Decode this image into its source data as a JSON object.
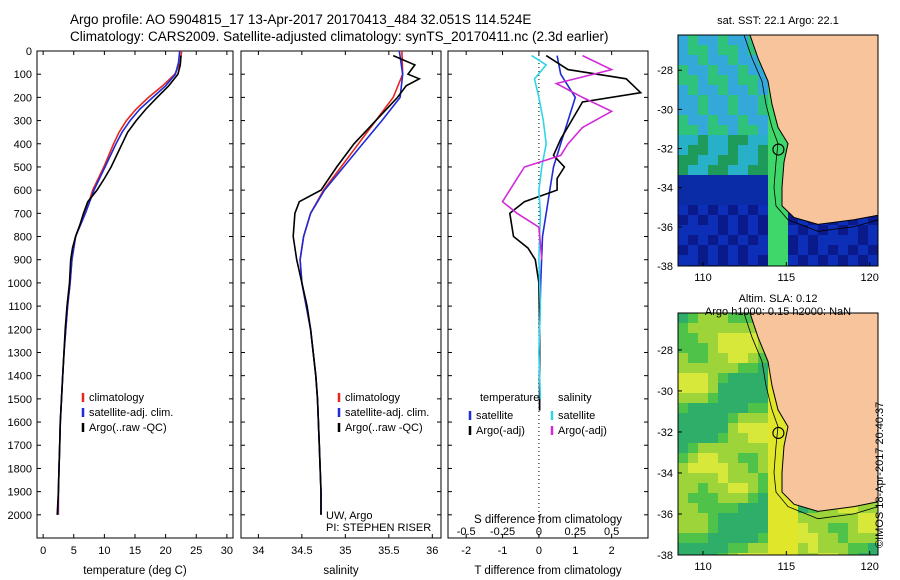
{
  "header": {
    "line1": "Argo profile: AO 5904815_17 13-Apr-2017 20170413_484 32.051S 114.524E",
    "line2": "Climatology: CARS2009. Satellite-adjusted climatology: synTS_20170411.nc (2.3d earlier)"
  },
  "stamp": "©IMOS 18-Apr-2017 20:40:37",
  "colors": {
    "climatology": "#e8261e",
    "satellite": "#1f2bd6",
    "argo": "#000000",
    "satellite_s": "#2fd6e8",
    "argo_s": "#d12bd8",
    "land": "#f7c49b"
  },
  "chart_data": [
    {
      "type": "line",
      "panel": "temperature",
      "xlabel": "temperature (deg C)",
      "xlim": [
        -1,
        31
      ],
      "xticks": [
        0,
        5,
        10,
        15,
        20,
        25,
        30
      ],
      "ylim": [
        2100,
        0
      ],
      "yticks": [
        0,
        100,
        200,
        300,
        400,
        500,
        600,
        700,
        800,
        900,
        1000,
        1100,
        1200,
        1300,
        1400,
        1500,
        1600,
        1700,
        1800,
        1900,
        2000
      ],
      "legend": [
        "climatology",
        "satellite-adj. clim.",
        "Argo(..raw -QC)"
      ],
      "legend_position": "lower-left",
      "series": [
        {
          "name": "climatology",
          "color": "#e8261e",
          "points": [
            [
              22.6,
              0
            ],
            [
              22.4,
              50
            ],
            [
              21.5,
              100
            ],
            [
              19.5,
              150
            ],
            [
              17.2,
              200
            ],
            [
              15.2,
              250
            ],
            [
              13.6,
              300
            ],
            [
              12.4,
              350
            ],
            [
              11.5,
              400
            ],
            [
              10.7,
              450
            ],
            [
              9.9,
              500
            ],
            [
              9.0,
              550
            ],
            [
              8.1,
              600
            ],
            [
              7.5,
              650
            ],
            [
              6.8,
              700
            ],
            [
              6.0,
              750
            ],
            [
              5.3,
              800
            ],
            [
              4.7,
              900
            ],
            [
              4.4,
              1000
            ],
            [
              4.0,
              1100
            ],
            [
              3.7,
              1200
            ],
            [
              3.4,
              1300
            ],
            [
              3.2,
              1400
            ],
            [
              3.0,
              1500
            ],
            [
              2.8,
              1600
            ],
            [
              2.7,
              1700
            ],
            [
              2.6,
              1800
            ],
            [
              2.5,
              1900
            ],
            [
              2.5,
              2000
            ]
          ]
        },
        {
          "name": "satellite-adj. clim.",
          "color": "#1f2bd6",
          "points": [
            [
              22.3,
              0
            ],
            [
              22.1,
              50
            ],
            [
              21.6,
              100
            ],
            [
              20.0,
              150
            ],
            [
              17.9,
              200
            ],
            [
              15.8,
              250
            ],
            [
              14.2,
              300
            ],
            [
              12.9,
              350
            ],
            [
              11.9,
              400
            ],
            [
              11.0,
              450
            ],
            [
              10.1,
              500
            ],
            [
              9.2,
              550
            ],
            [
              8.3,
              600
            ],
            [
              7.6,
              650
            ],
            [
              6.9,
              700
            ],
            [
              6.1,
              750
            ],
            [
              5.3,
              800
            ],
            [
              4.7,
              900
            ],
            [
              4.4,
              1000
            ],
            [
              4.0,
              1100
            ],
            [
              3.7,
              1200
            ],
            [
              3.4,
              1300
            ],
            [
              3.2,
              1400
            ],
            [
              3.0,
              1500
            ],
            [
              2.8,
              1600
            ],
            [
              2.7,
              1700
            ],
            [
              2.6,
              1800
            ],
            [
              2.5,
              1900
            ],
            [
              2.4,
              2000
            ]
          ]
        },
        {
          "name": "Argo(..raw -QC)",
          "color": "#000000",
          "points": [
            [
              22.5,
              20
            ],
            [
              22.4,
              60
            ],
            [
              22.0,
              100
            ],
            [
              20.5,
              150
            ],
            [
              18.6,
              200
            ],
            [
              16.8,
              250
            ],
            [
              15.2,
              300
            ],
            [
              13.8,
              350
            ],
            [
              12.9,
              400
            ],
            [
              12.0,
              450
            ],
            [
              11.1,
              500
            ],
            [
              10.0,
              550
            ],
            [
              8.8,
              600
            ],
            [
              7.3,
              650
            ],
            [
              6.6,
              700
            ],
            [
              6.0,
              750
            ],
            [
              5.3,
              800
            ],
            [
              4.8,
              850
            ],
            [
              4.5,
              900
            ],
            [
              4.3,
              1000
            ],
            [
              3.9,
              1100
            ],
            [
              3.6,
              1200
            ],
            [
              3.4,
              1300
            ],
            [
              3.2,
              1400
            ],
            [
              3.0,
              1500
            ],
            [
              2.8,
              1600
            ],
            [
              2.7,
              1700
            ],
            [
              2.6,
              1800
            ],
            [
              2.5,
              1900
            ],
            [
              2.3,
              2000
            ]
          ]
        }
      ]
    },
    {
      "type": "line",
      "panel": "salinity",
      "xlabel": "salinity",
      "xlim": [
        33.8,
        36.1
      ],
      "xticks": [
        34,
        34.5,
        35,
        35.5,
        36
      ],
      "ylim": [
        2100,
        0
      ],
      "legend": [
        "climatology",
        "satellite-adj. clim.",
        "Argo(..raw -QC)"
      ],
      "legend_position": "lower-right",
      "annotation": [
        "UW, Argo",
        "PI: STEPHEN RISER"
      ],
      "series": [
        {
          "name": "climatology",
          "color": "#e8261e",
          "points": [
            [
              35.65,
              0
            ],
            [
              35.66,
              100
            ],
            [
              35.55,
              200
            ],
            [
              35.35,
              300
            ],
            [
              35.15,
              400
            ],
            [
              34.95,
              500
            ],
            [
              34.75,
              600
            ],
            [
              34.6,
              700
            ],
            [
              34.52,
              800
            ],
            [
              34.48,
              900
            ],
            [
              34.5,
              1000
            ],
            [
              34.55,
              1100
            ],
            [
              34.6,
              1200
            ],
            [
              34.63,
              1300
            ],
            [
              34.66,
              1400
            ],
            [
              34.68,
              1500
            ],
            [
              34.7,
              1700
            ],
            [
              34.72,
              1900
            ],
            [
              34.72,
              2000
            ]
          ]
        },
        {
          "name": "satellite-adj. clim.",
          "color": "#1f2bd6",
          "points": [
            [
              35.62,
              0
            ],
            [
              35.66,
              100
            ],
            [
              35.63,
              200
            ],
            [
              35.42,
              300
            ],
            [
              35.2,
              400
            ],
            [
              34.98,
              500
            ],
            [
              34.76,
              600
            ],
            [
              34.6,
              700
            ],
            [
              34.52,
              800
            ],
            [
              34.48,
              900
            ],
            [
              34.5,
              1000
            ],
            [
              34.55,
              1100
            ],
            [
              34.6,
              1200
            ],
            [
              34.63,
              1300
            ],
            [
              34.66,
              1400
            ],
            [
              34.68,
              1500
            ],
            [
              34.7,
              1700
            ],
            [
              34.72,
              1900
            ],
            [
              34.72,
              2000
            ]
          ]
        },
        {
          "name": "Argo(..raw -QC)",
          "color": "#000000",
          "points": [
            [
              35.55,
              20
            ],
            [
              35.8,
              60
            ],
            [
              35.72,
              100
            ],
            [
              35.85,
              120
            ],
            [
              35.7,
              150
            ],
            [
              35.6,
              200
            ],
            [
              35.35,
              300
            ],
            [
              35.1,
              400
            ],
            [
              34.9,
              500
            ],
            [
              34.72,
              600
            ],
            [
              34.47,
              650
            ],
            [
              34.42,
              700
            ],
            [
              34.4,
              800
            ],
            [
              34.44,
              900
            ],
            [
              34.5,
              1000
            ],
            [
              34.56,
              1100
            ],
            [
              34.6,
              1200
            ],
            [
              34.63,
              1300
            ],
            [
              34.66,
              1400
            ],
            [
              34.68,
              1500
            ],
            [
              34.7,
              1700
            ],
            [
              34.72,
              1900
            ],
            [
              34.72,
              2000
            ]
          ]
        }
      ]
    },
    {
      "type": "line",
      "panel": "differences",
      "xlabel": "T difference from climatology",
      "xlabel_top": "S difference from climatology",
      "xlim": [
        -2.5,
        3.0
      ],
      "xticks_bottom": [
        -2,
        -1,
        0,
        1,
        2
      ],
      "xticks_top": [
        -0.5,
        -0.25,
        0,
        0.25,
        0.5
      ],
      "ylim": [
        2100,
        0
      ],
      "legend": [
        "temperature",
        "satellite",
        "Argo(-adj)",
        "salinity",
        "satellite",
        "Argo(-adj)"
      ],
      "series": [
        {
          "name": "temperature satellite",
          "color": "#1f2bd6",
          "points": [
            [
              0.5,
              20
            ],
            [
              0.6,
              100
            ],
            [
              1.0,
              200
            ],
            [
              0.8,
              300
            ],
            [
              0.6,
              400
            ],
            [
              0.4,
              500
            ],
            [
              0.3,
              600
            ],
            [
              0.2,
              700
            ],
            [
              0.1,
              800
            ],
            [
              0.05,
              1000
            ],
            [
              0.02,
              1200
            ],
            [
              0.02,
              1400
            ],
            [
              0.02,
              1550
            ]
          ]
        },
        {
          "name": "temperature Argo(-adj)",
          "color": "#000000",
          "points": [
            [
              0.2,
              20
            ],
            [
              0.8,
              80
            ],
            [
              2.4,
              120
            ],
            [
              2.8,
              180
            ],
            [
              1.2,
              220
            ],
            [
              0.9,
              300
            ],
            [
              0.6,
              380
            ],
            [
              0.4,
              450
            ],
            [
              0.7,
              500
            ],
            [
              0.5,
              550
            ],
            [
              0.5,
              600
            ],
            [
              -0.4,
              650
            ],
            [
              -0.8,
              700
            ],
            [
              -0.7,
              800
            ],
            [
              -0.3,
              850
            ],
            [
              -0.1,
              900
            ],
            [
              0.0,
              1000
            ],
            [
              0.02,
              1200
            ],
            [
              0.02,
              1400
            ],
            [
              0.02,
              1550
            ]
          ]
        },
        {
          "name": "salinity satellite",
          "color": "#2fd6e8",
          "points": [
            [
              -0.05,
              20
            ],
            [
              0.05,
              60
            ],
            [
              -0.03,
              120
            ],
            [
              0.0,
              200
            ],
            [
              0.03,
              300
            ],
            [
              0.05,
              400
            ],
            [
              0.02,
              500
            ],
            [
              0.0,
              600
            ],
            [
              0.01,
              700
            ],
            [
              0.0,
              900
            ],
            [
              0.01,
              1100
            ],
            [
              0.0,
              1300
            ],
            [
              0.01,
              1500
            ]
          ]
        },
        {
          "name": "salinity Argo(-adj)",
          "color": "#d12bd8",
          "points": [
            [
              0.3,
              20
            ],
            [
              0.5,
              80
            ],
            [
              0.12,
              140
            ],
            [
              0.3,
              200
            ],
            [
              0.5,
              260
            ],
            [
              0.3,
              330
            ],
            [
              0.2,
              400
            ],
            [
              0.15,
              450
            ],
            [
              -0.1,
              500
            ],
            [
              -0.2,
              600
            ],
            [
              -0.25,
              650
            ],
            [
              -0.15,
              700
            ],
            [
              0.0,
              760
            ],
            [
              0.02,
              900
            ]
          ]
        }
      ]
    }
  ],
  "maps": {
    "sst": {
      "title": "sat. SST: 22.1  Argo: 22.1",
      "xticks": [
        "110",
        "115",
        "120"
      ],
      "yticks": [
        "-28",
        "-30",
        "-32",
        "-34",
        "-36",
        "-38"
      ]
    },
    "sla": {
      "title1": "Altim. SLA: 0.12",
      "title2": "Argo h1000: 0.15 h2000: NaN",
      "xticks": [
        "110",
        "115",
        "120"
      ],
      "yticks": [
        "-28",
        "-30",
        "-32",
        "-34",
        "-36",
        "-38"
      ]
    }
  }
}
